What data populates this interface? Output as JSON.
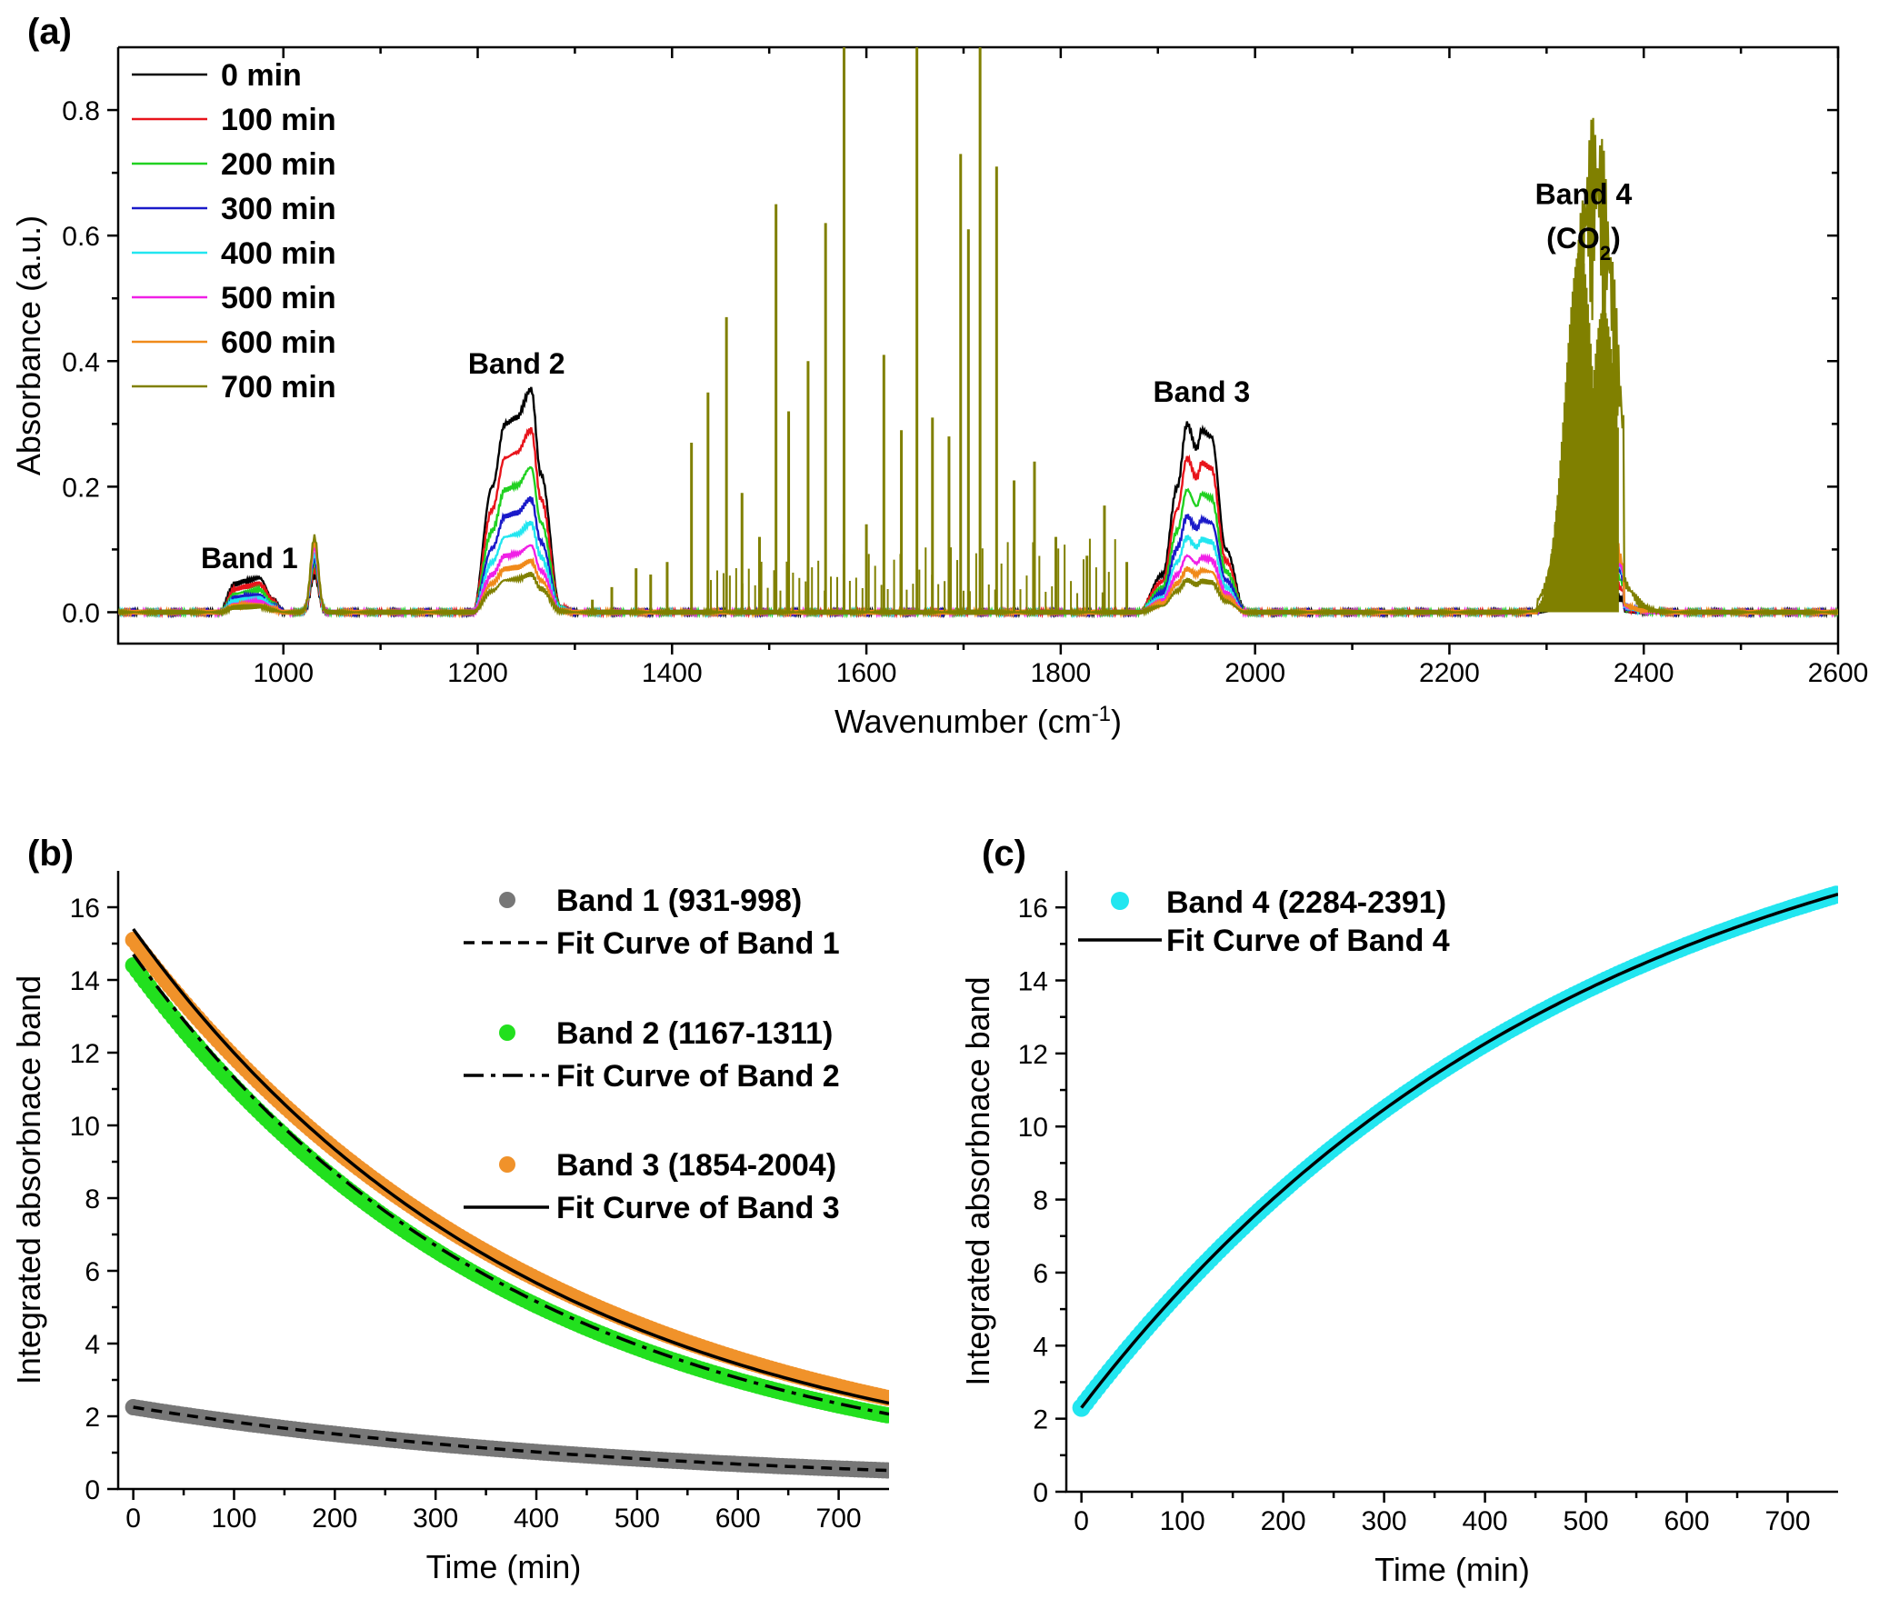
{
  "chart_data": [
    {
      "panel": "(a)",
      "type": "line",
      "xlabel": "Wavenumber (cm",
      "xlabel_sup": "-1",
      "xlabel_end": ")",
      "ylabel": "Absorbance (a.u.)",
      "xlim": [
        830,
        2600
      ],
      "ylim": [
        -0.05,
        0.9
      ],
      "xticks": [
        1000,
        1200,
        1400,
        1600,
        1800,
        2000,
        2200,
        2400,
        2600
      ],
      "yticks": [
        0.0,
        0.2,
        0.4,
        0.6,
        0.8
      ],
      "ytick_labels": [
        "0.0",
        "0.2",
        "0.4",
        "0.6",
        "0.8"
      ],
      "legend_position": "top-left",
      "series": [
        {
          "name": "0 min",
          "color": "#000000",
          "band_scale": 1.0,
          "co2_peak": 0.05
        },
        {
          "name": "100 min",
          "color": "#e8141b",
          "band_scale": 0.82,
          "co2_peak": 0.09
        },
        {
          "name": "200 min",
          "color": "#21d121",
          "band_scale": 0.65,
          "co2_peak": 0.12
        },
        {
          "name": "300 min",
          "color": "#1a1ac9",
          "band_scale": 0.51,
          "co2_peak": 0.15
        },
        {
          "name": "400 min",
          "color": "#22e6f0",
          "band_scale": 0.4,
          "co2_peak": 0.17
        },
        {
          "name": "500 min",
          "color": "#f020e6",
          "band_scale": 0.3,
          "co2_peak": 0.18
        },
        {
          "name": "600 min",
          "color": "#f08a1a",
          "band_scale": 0.23,
          "co2_peak": 0.2
        },
        {
          "name": "700 min",
          "color": "#808000",
          "band_scale": 0.17,
          "co2_peak": 0.8
        }
      ],
      "band_profile_0min": {
        "band1": [
          [
            935,
            0.0
          ],
          [
            950,
            0.045
          ],
          [
            962,
            0.05
          ],
          [
            975,
            0.055
          ],
          [
            990,
            0.02
          ],
          [
            1000,
            0.0
          ]
        ],
        "band2": [
          [
            1195,
            0.0
          ],
          [
            1215,
            0.2
          ],
          [
            1228,
            0.3
          ],
          [
            1240,
            0.31
          ],
          [
            1255,
            0.355
          ],
          [
            1265,
            0.22
          ],
          [
            1285,
            0.01
          ],
          [
            1300,
            0.0
          ]
        ],
        "band3": [
          [
            1880,
            0.0
          ],
          [
            1905,
            0.06
          ],
          [
            1920,
            0.2
          ],
          [
            1930,
            0.3
          ],
          [
            1940,
            0.26
          ],
          [
            1945,
            0.29
          ],
          [
            1955,
            0.28
          ],
          [
            1970,
            0.1
          ],
          [
            1990,
            0.0
          ]
        ]
      },
      "water_lines_700min": [
        [
          1318,
          0.02
        ],
        [
          1338,
          0.04
        ],
        [
          1363,
          0.07
        ],
        [
          1378,
          0.06
        ],
        [
          1395,
          0.08
        ],
        [
          1420,
          0.27
        ],
        [
          1437,
          0.35
        ],
        [
          1456,
          0.47
        ],
        [
          1472,
          0.19
        ],
        [
          1490,
          0.12
        ],
        [
          1507,
          0.65
        ],
        [
          1520,
          0.32
        ],
        [
          1540,
          0.4
        ],
        [
          1558,
          0.62
        ],
        [
          1577,
          0.9
        ],
        [
          1600,
          0.14
        ],
        [
          1618,
          0.41
        ],
        [
          1636,
          0.29
        ],
        [
          1652,
          0.9
        ],
        [
          1668,
          0.31
        ],
        [
          1685,
          0.28
        ],
        [
          1697,
          0.73
        ],
        [
          1705,
          0.61
        ],
        [
          1717,
          0.9
        ],
        [
          1734,
          0.71
        ],
        [
          1752,
          0.21
        ],
        [
          1773,
          0.24
        ],
        [
          1795,
          0.12
        ],
        [
          1827,
          0.09
        ],
        [
          1845,
          0.17
        ],
        [
          1868,
          0.08
        ]
      ],
      "annotations": [
        {
          "text": "Band 1",
          "x": 965,
          "y": 0.07
        },
        {
          "text": "Band 2",
          "x": 1240,
          "y": 0.38
        },
        {
          "text": "Band 3",
          "x": 1945,
          "y": 0.335
        },
        {
          "text": "Band 4",
          "x": 2338,
          "y": 0.65
        },
        {
          "text": "(CO",
          "x": 2338,
          "y": 0.58,
          "sub": "2",
          "end": ")"
        }
      ]
    },
    {
      "panel": "(b)",
      "type": "scatter",
      "xlabel": "Time (min)",
      "ylabel": "Integrated absorbnace band",
      "xlim": [
        -15,
        750
      ],
      "ylim": [
        0,
        17
      ],
      "xticks": [
        0,
        100,
        200,
        300,
        400,
        500,
        600,
        700
      ],
      "yticks": [
        0,
        2,
        4,
        6,
        8,
        10,
        12,
        14,
        16
      ],
      "legend_position": "top-right",
      "series": [
        {
          "name": "Band 1 (931-998)",
          "marker": "circle",
          "color": "#777777",
          "y0": 2.25,
          "rate": 0.00198,
          "inf": 0.0
        },
        {
          "name": "Fit Curve of Band 1",
          "line": "dashed",
          "color": "#000000",
          "y0": 2.25,
          "rate": 0.00198,
          "inf": 0.0
        },
        {
          "name": "Band 2 (1167-1311)",
          "marker": "circle",
          "color": "#22e01e",
          "y0": 14.4,
          "rate": 0.00262,
          "inf": 0.0
        },
        {
          "name": "Fit Curve of Band 2",
          "line": "dashdot",
          "color": "#000000",
          "y0": 14.7,
          "rate": 0.00262,
          "inf": 0.0
        },
        {
          "name": "Band 3 (1854-2004)",
          "marker": "circle",
          "color": "#f0922a",
          "y0": 15.1,
          "rate": 0.0024,
          "inf": 0.0
        },
        {
          "name": "Fit Curve of Band 3",
          "line": "solid",
          "color": "#000000",
          "y0": 15.4,
          "rate": 0.0025,
          "inf": 0.0
        }
      ]
    },
    {
      "panel": "(c)",
      "type": "scatter",
      "xlabel": "Time (min)",
      "ylabel": "Integrated absorbnace band",
      "xlim": [
        -15,
        750
      ],
      "ylim": [
        0,
        17
      ],
      "xticks": [
        0,
        100,
        200,
        300,
        400,
        500,
        600,
        700
      ],
      "yticks": [
        0,
        2,
        4,
        6,
        8,
        10,
        12,
        14,
        16
      ],
      "legend_position": "top-left",
      "series": [
        {
          "name": "Band 4 (2284-2391)",
          "marker": "circle",
          "color": "#22e6f0",
          "y0": 2.3,
          "asymptote": 20.4,
          "rate": 0.002
        },
        {
          "name": "Fit Curve of Band 4",
          "line": "solid",
          "color": "#000000",
          "y0": 2.3,
          "asymptote": 20.4,
          "rate": 0.002
        }
      ]
    }
  ]
}
